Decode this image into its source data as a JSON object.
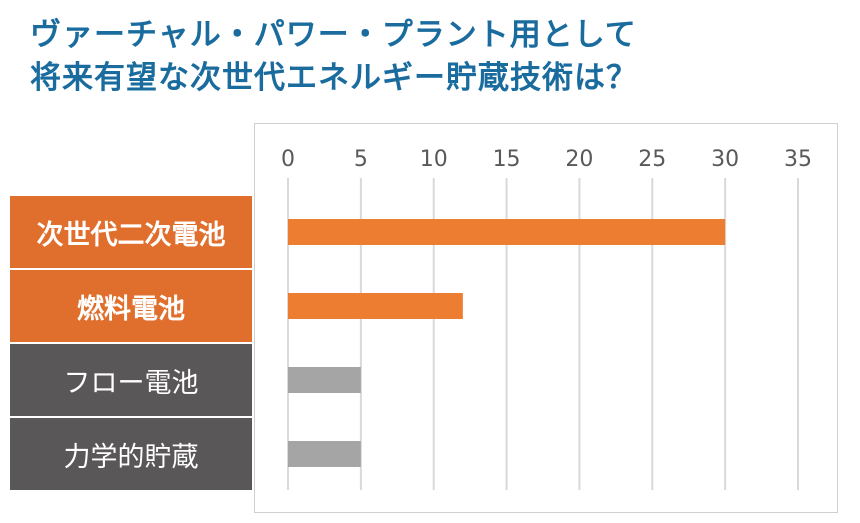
{
  "title_lines": [
    "ヴァーチャル・パワー・プラント用として",
    "将来有望な次世代エネルギー貯蔵技術は？"
  ],
  "colors": {
    "title": "#1a6c9e",
    "highlight_label_bg": "#e06e2c",
    "dim_label_bg": "#595757",
    "bar_highlight": "#ed7d31",
    "bar_dim": "#a5a5a5",
    "grid": "#d9d9d9"
  },
  "chart_data": {
    "type": "bar",
    "orientation": "horizontal",
    "categories": [
      "次世代二次電池",
      "燃料電池",
      "フロー電池",
      "力学的貯蔵"
    ],
    "values": [
      30,
      12,
      5,
      5
    ],
    "highlight": [
      true,
      true,
      false,
      false
    ],
    "xlim": [
      0,
      35
    ],
    "xticks": [
      "0",
      "5",
      "10",
      "15",
      "20",
      "25",
      "30",
      "35"
    ],
    "axis_position": "top",
    "grid": true,
    "legend": false
  }
}
